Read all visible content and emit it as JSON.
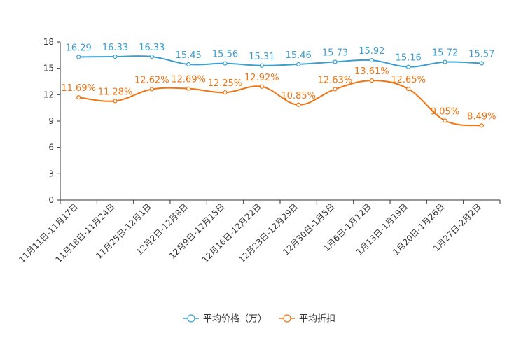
{
  "chart_data": {
    "type": "line",
    "title": "",
    "xlabel": "",
    "ylabel": "",
    "ylim": [
      0,
      18
    ],
    "yticks": [
      0,
      3,
      6,
      9,
      12,
      15,
      18
    ],
    "grid": false,
    "legend_position": "bottom-center",
    "categories": [
      "11月11日-11月17日",
      "11月18日-11月24日",
      "11月25日-12月1日",
      "12月2日-12月8日",
      "12月9日-12月15日",
      "12月16日-12月22日",
      "12月23日-12月29日",
      "12月30日-1月5日",
      "1月6日-1月12日",
      "1月13日-1月19日",
      "1月20日-1月26日",
      "1月27日-2月2日"
    ],
    "series": [
      {
        "name": "平均价格（万）",
        "color": "#3a9fd0",
        "values": [
          16.29,
          16.33,
          16.33,
          15.45,
          15.56,
          15.31,
          15.46,
          15.73,
          15.92,
          15.16,
          15.72,
          15.57
        ],
        "labels": [
          "16.29",
          "16.33",
          "16.33",
          "15.45",
          "15.56",
          "15.31",
          "15.46",
          "15.73",
          "15.92",
          "15.16",
          "15.72",
          "15.57"
        ]
      },
      {
        "name": "平均折扣",
        "color": "#f07410",
        "values": [
          11.69,
          11.28,
          12.62,
          12.69,
          12.25,
          12.92,
          10.85,
          12.63,
          13.61,
          12.65,
          9.05,
          8.49
        ],
        "labels": [
          "11.69%",
          "11.28%",
          "12.62%",
          "12.69%",
          "12.25%",
          "12.92%",
          "10.85%",
          "12.63%",
          "13.61%",
          "12.65%",
          "9.05%",
          "8.49%"
        ]
      }
    ]
  }
}
